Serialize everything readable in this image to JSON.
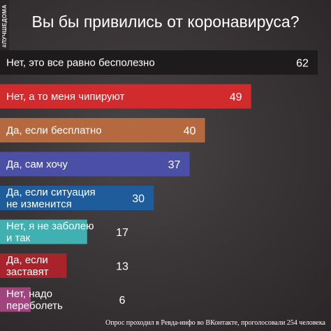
{
  "side_tag": "#ЛУЧШЕДОМА",
  "title": "Вы бы привились от коронавируса?",
  "footer": "Опрос проходил в Ревда-инфо во ВКонтакте, проголосовали 254 человека",
  "chart_data": {
    "type": "bar",
    "orientation": "horizontal",
    "title": "Вы бы привились от коронавируса?",
    "categories": [
      "Нет, это все равно бесполезно",
      "Нет, а то меня чипируют",
      "Да, если бесплатно",
      "Да, сам хочу",
      "Да, если ситуация\nне изменится",
      "Нет, я не заболею\nи так",
      "Да, если\nзаставят",
      "Нет, надо\nпереболеть"
    ],
    "values": [
      62,
      49,
      40,
      37,
      30,
      17,
      13,
      6
    ],
    "colors": [
      "#1e1b1c",
      "#d12b2e",
      "#b5693e",
      "#4c4fa6",
      "#1e5c9c",
      "#40b0b0",
      "#a8232c",
      "#a0447e"
    ],
    "xlim": [
      0,
      62
    ],
    "grid": false,
    "legend": "none"
  }
}
